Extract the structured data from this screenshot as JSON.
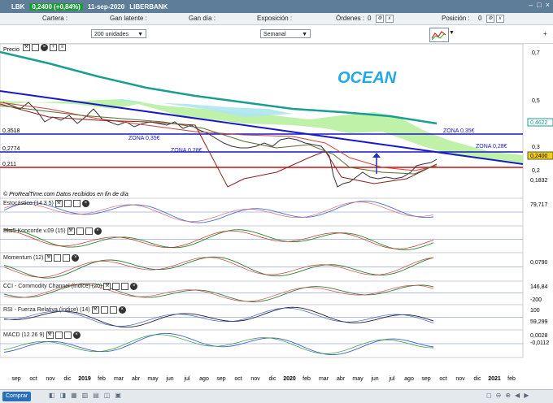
{
  "titlebar": {
    "symbol": "LBK",
    "change": "0,2400 (+0,84%)",
    "date": "11-sep-2020",
    "name": "LIBERBANK"
  },
  "posbar": {
    "cartera": "Cartera :",
    "latente": "Gan latente :",
    "gandia": "Gan día :",
    "exposicion": "Exposición :",
    "ordenes": "Órdenes :",
    "ordenes_val": "0",
    "posicion": "Posición :",
    "posicion_val": "0"
  },
  "controls": {
    "units": "200 unidades",
    "period": "Semanal"
  },
  "price_pane": {
    "title": "Precio",
    "watermark": "OCEAN",
    "source": "© ProRealTime.com  Datos recibidos en fin de día",
    "zones": [
      {
        "label": "ZONA 0,35€"
      },
      {
        "label": "ZONA 0,28€"
      },
      {
        "label": "ZONA 0,35€"
      },
      {
        "label": "ZONA 0,28€"
      }
    ],
    "left_levels": [
      "0,3518",
      "0,2774",
      "0,211"
    ],
    "right_axis": [
      "0,7",
      "0,5",
      "0,3",
      "0,2"
    ],
    "right_tags": [
      "0,4622",
      "0,2400",
      "0,1832"
    ]
  },
  "panes": [
    {
      "title": "Estocástico (14 3 5)",
      "tags": [
        "79,717"
      ]
    },
    {
      "title": "Blai5 Koncorde v.09 (15)",
      "tags": []
    },
    {
      "title": "Momentum (12)",
      "tags": [
        "0,0790"
      ]
    },
    {
      "title": "CCI - Commodity Channel (índice) (20)",
      "tags": [
        "146,84",
        "-200"
      ]
    },
    {
      "title": "RSI - Fuerza Relativa (índice) (14)",
      "tags": [
        "100",
        "59,299"
      ]
    },
    {
      "title": "MACD (12 26 9)",
      "tags": [
        "0,0028",
        "-0,0112"
      ]
    }
  ],
  "xaxis": [
    "sep",
    "oct",
    "nov",
    "dic",
    "2019",
    "feb",
    "mar",
    "abr",
    "may",
    "jun",
    "jul",
    "ago",
    "sep",
    "oct",
    "nov",
    "dic",
    "2020",
    "feb",
    "mar",
    "abr",
    "may",
    "jun",
    "jul",
    "ago",
    "sep",
    "oct",
    "nov",
    "dic",
    "2021",
    "feb"
  ],
  "bottom": {
    "buy": "Comprar"
  }
}
